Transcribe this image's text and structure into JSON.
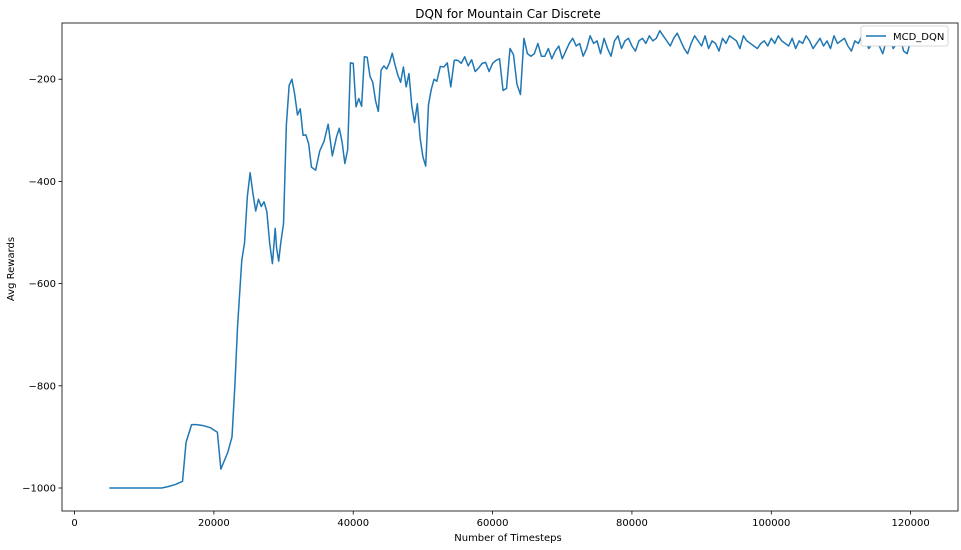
{
  "chart_data": {
    "type": "line",
    "title": "DQN for Mountain Car Discrete",
    "xlabel": "Number of Timesteps",
    "ylabel": "Avg Rewards",
    "xlim": [
      -1800,
      126800
    ],
    "ylim": [
      -1045,
      -90
    ],
    "xticks": [
      0,
      20000,
      40000,
      60000,
      80000,
      100000,
      120000
    ],
    "xtick_labels": [
      "0",
      "20000",
      "40000",
      "60000",
      "80000",
      "100000",
      "120000"
    ],
    "yticks": [
      -1000,
      -800,
      -600,
      -400,
      -200
    ],
    "ytick_labels": [
      "−1000",
      "−800",
      "−600",
      "−400",
      "−200"
    ],
    "grid": false,
    "legend_position": "top-right",
    "series": [
      {
        "name": "MCD_DQN",
        "color": "#1f77b4",
        "x": [
          5000,
          12500,
          13500,
          14500,
          15500,
          16000,
          16800,
          17500,
          18500,
          19500,
          20500,
          21000,
          22000,
          22600,
          23000,
          23400,
          24000,
          24400,
          24800,
          25200,
          25600,
          26000,
          26400,
          26800,
          27200,
          27600,
          28000,
          28400,
          28800,
          29000,
          29300,
          29600,
          30000,
          30400,
          30800,
          31200,
          31600,
          32000,
          32400,
          32800,
          33200,
          33600,
          34000,
          34600,
          35200,
          35800,
          36400,
          37000,
          37600,
          38000,
          38400,
          38800,
          39200,
          39600,
          40000,
          40400,
          40800,
          41200,
          41600,
          42000,
          42400,
          42800,
          43200,
          43600,
          44000,
          44400,
          44800,
          45200,
          45600,
          46000,
          46400,
          46800,
          47200,
          47600,
          48000,
          48400,
          48800,
          49200,
          49600,
          50000,
          50400,
          50800,
          51200,
          51600,
          52000,
          52500,
          53000,
          53500,
          54000,
          54500,
          55000,
          55500,
          56000,
          56500,
          57000,
          57500,
          58000,
          58500,
          59000,
          59500,
          60000,
          60500,
          61000,
          61500,
          62000,
          62500,
          63000,
          63500,
          64000,
          64500,
          65000,
          65500,
          66000,
          66500,
          67000,
          67500,
          68000,
          68500,
          69000,
          69500,
          70000,
          70500,
          71000,
          71500,
          72000,
          72500,
          73000,
          73500,
          74000,
          74500,
          75000,
          75500,
          76000,
          76500,
          77000,
          77500,
          78000,
          78500,
          79000,
          79500,
          80000,
          80500,
          81000,
          81500,
          82000,
          82500,
          83000,
          83500,
          84000,
          84500,
          85000,
          85500,
          86000,
          86500,
          87000,
          87500,
          88000,
          88500,
          89000,
          89500,
          90000,
          90500,
          91000,
          91500,
          92000,
          92500,
          93000,
          93500,
          94000,
          94500,
          95000,
          95500,
          96000,
          96500,
          97000,
          97500,
          98000,
          98500,
          99000,
          99500,
          100000,
          100500,
          101000,
          101500,
          102000,
          102500,
          103000,
          103500,
          104000,
          104500,
          105000,
          105500,
          106000,
          106500,
          107000,
          107500,
          108000,
          108500,
          109000,
          109500,
          110000,
          110500,
          111000,
          111500,
          112000,
          112500,
          113000,
          113500,
          114000,
          114500,
          115000,
          115500,
          116000,
          116500,
          117000,
          117500,
          118000,
          118500,
          119000,
          119500,
          120000
        ],
        "y": [
          -1000,
          -1000,
          -997,
          -993,
          -987,
          -911,
          -876,
          -876,
          -878,
          -882,
          -891,
          -963,
          -930,
          -900,
          -803,
          -683,
          -555,
          -520,
          -430,
          -383,
          -423,
          -458,
          -435,
          -449,
          -440,
          -459,
          -520,
          -561,
          -492,
          -530,
          -556,
          -520,
          -482,
          -290,
          -212,
          -200,
          -230,
          -270,
          -258,
          -310,
          -309,
          -326,
          -372,
          -378,
          -340,
          -322,
          -288,
          -350,
          -313,
          -296,
          -323,
          -365,
          -338,
          -168,
          -169,
          -254,
          -238,
          -253,
          -156,
          -157,
          -194,
          -206,
          -242,
          -263,
          -182,
          -174,
          -180,
          -168,
          -149,
          -172,
          -192,
          -206,
          -176,
          -215,
          -189,
          -252,
          -285,
          -248,
          -315,
          -352,
          -370,
          -250,
          -220,
          -200,
          -204,
          -175,
          -176,
          -168,
          -215,
          -163,
          -163,
          -169,
          -156,
          -174,
          -162,
          -185,
          -178,
          -169,
          -167,
          -185,
          -169,
          -163,
          -160,
          -222,
          -218,
          -140,
          -152,
          -210,
          -230,
          -120,
          -150,
          -155,
          -150,
          -130,
          -155,
          -155,
          -140,
          -160,
          -145,
          -135,
          -160,
          -145,
          -130,
          -120,
          -135,
          -130,
          -155,
          -140,
          -115,
          -130,
          -125,
          -150,
          -120,
          -140,
          -155,
          -125,
          -115,
          -140,
          -125,
          -120,
          -135,
          -145,
          -125,
          -120,
          -130,
          -115,
          -125,
          -120,
          -105,
          -115,
          -125,
          -135,
          -120,
          -110,
          -125,
          -140,
          -150,
          -130,
          -115,
          -125,
          -135,
          -115,
          -140,
          -125,
          -130,
          -145,
          -120,
          -130,
          -115,
          -120,
          -125,
          -140,
          -115,
          -125,
          -130,
          -135,
          -140,
          -130,
          -125,
          -135,
          -120,
          -130,
          -115,
          -125,
          -130,
          -135,
          -120,
          -140,
          -125,
          -130,
          -115,
          -125,
          -140,
          -130,
          -120,
          -135,
          -125,
          -140,
          -115,
          -130,
          -125,
          -120,
          -135,
          -145,
          -125,
          -130,
          -115,
          -125,
          -140,
          -130,
          -120,
          -135,
          -150,
          -125,
          -120,
          -140,
          -130,
          -120,
          -145,
          -150,
          -125
        ]
      }
    ]
  }
}
